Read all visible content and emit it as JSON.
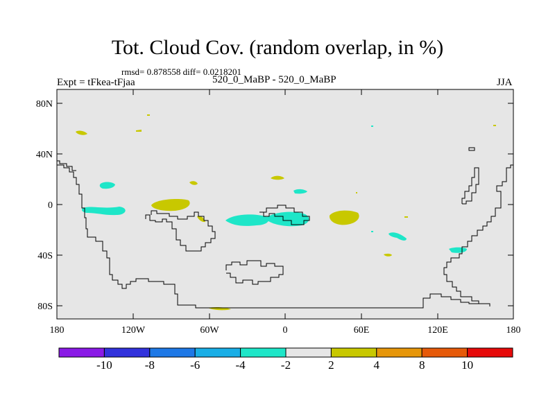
{
  "title": "Tot. Cloud Cov. (random overlap, in %)",
  "stats": "rmsd= 0.878558 diff= 0.0218201",
  "expt": "Expt = tFkea-tFjaa",
  "subtitle": "520_0_MaBP - 520_0_MaBP",
  "season": "JJA",
  "map": {
    "background_color": "#e6e6e6",
    "lon_ticks": [
      "180",
      "120W",
      "60W",
      "0",
      "60E",
      "120E",
      "180"
    ],
    "lat_ticks": [
      "80N",
      "40N",
      "0",
      "40S",
      "80S"
    ]
  },
  "colorbar": {
    "colors": [
      "#8a1ae6",
      "#3232dc",
      "#1e78e6",
      "#19aee6",
      "#1ee6c8",
      "#e6e6e6",
      "#c8c800",
      "#e6960a",
      "#e65a0a",
      "#e60a0a"
    ],
    "labels": [
      "-10",
      "-8",
      "-6",
      "-4",
      "-2",
      "2",
      "4",
      "8",
      "10"
    ]
  }
}
